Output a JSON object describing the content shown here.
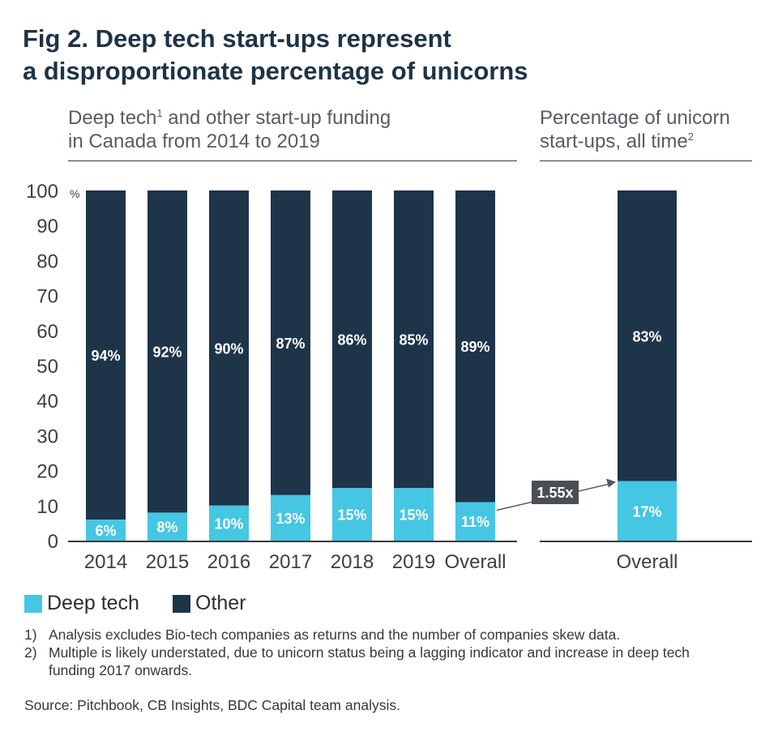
{
  "title_line1": "Fig 2. Deep tech start-ups represent",
  "title_line2": "a disproportionate percentage of unicorns",
  "subhead_left": {
    "line1_a": "Deep tech",
    "line1_sup": "1",
    "line1_b": " and other start-up funding",
    "line2": "in Canada from 2014 to 2019"
  },
  "subhead_right": {
    "line1": "Percentage of unicorn",
    "line2_a": "start-ups, all time",
    "line2_sup": "2"
  },
  "colors": {
    "deep_tech": "#45c6e3",
    "other": "#1e3449",
    "callout": "#4a4f55"
  },
  "chart_data": [
    {
      "type": "bar",
      "stacked": true,
      "categories": [
        "2014",
        "2015",
        "2016",
        "2017",
        "2018",
        "2019",
        "Overall"
      ],
      "series": [
        {
          "name": "Deep tech",
          "values": [
            6,
            8,
            10,
            13,
            15,
            15,
            11
          ],
          "labels": [
            "6%",
            "8%",
            "10%",
            "13%",
            "15%",
            "15%",
            "11%"
          ]
        },
        {
          "name": "Other",
          "values": [
            94,
            92,
            90,
            87,
            86,
            85,
            89
          ],
          "labels": [
            "94%",
            "92%",
            "90%",
            "87%",
            "86%",
            "85%",
            "89%"
          ]
        }
      ],
      "yticks": [
        "0",
        "10",
        "20",
        "30",
        "40",
        "50",
        "60",
        "70",
        "80",
        "90",
        "100"
      ],
      "yunit": "%",
      "ylim": [
        0,
        100
      ]
    },
    {
      "type": "bar",
      "stacked": true,
      "categories": [
        "Overall"
      ],
      "series": [
        {
          "name": "Deep tech",
          "values": [
            17
          ],
          "labels": [
            "17%"
          ]
        },
        {
          "name": "Other",
          "values": [
            83
          ],
          "labels": [
            "83%"
          ]
        }
      ],
      "ylim": [
        0,
        100
      ]
    }
  ],
  "callout": {
    "text": "1.55x"
  },
  "legend": [
    {
      "label": "Deep tech",
      "color": "#45c6e3"
    },
    {
      "label": "Other",
      "color": "#1e3449"
    }
  ],
  "notes": [
    {
      "num": "1)",
      "text": "Analysis excludes Bio-tech companies as returns and the number of companies skew data."
    },
    {
      "num": "2)",
      "text": "Multiple is likely understated, due to unicorn status being a lagging indicator and increase in deep tech funding 2017 onwards."
    }
  ],
  "source": "Source: Pitchbook, CB Insights, BDC Capital team analysis."
}
